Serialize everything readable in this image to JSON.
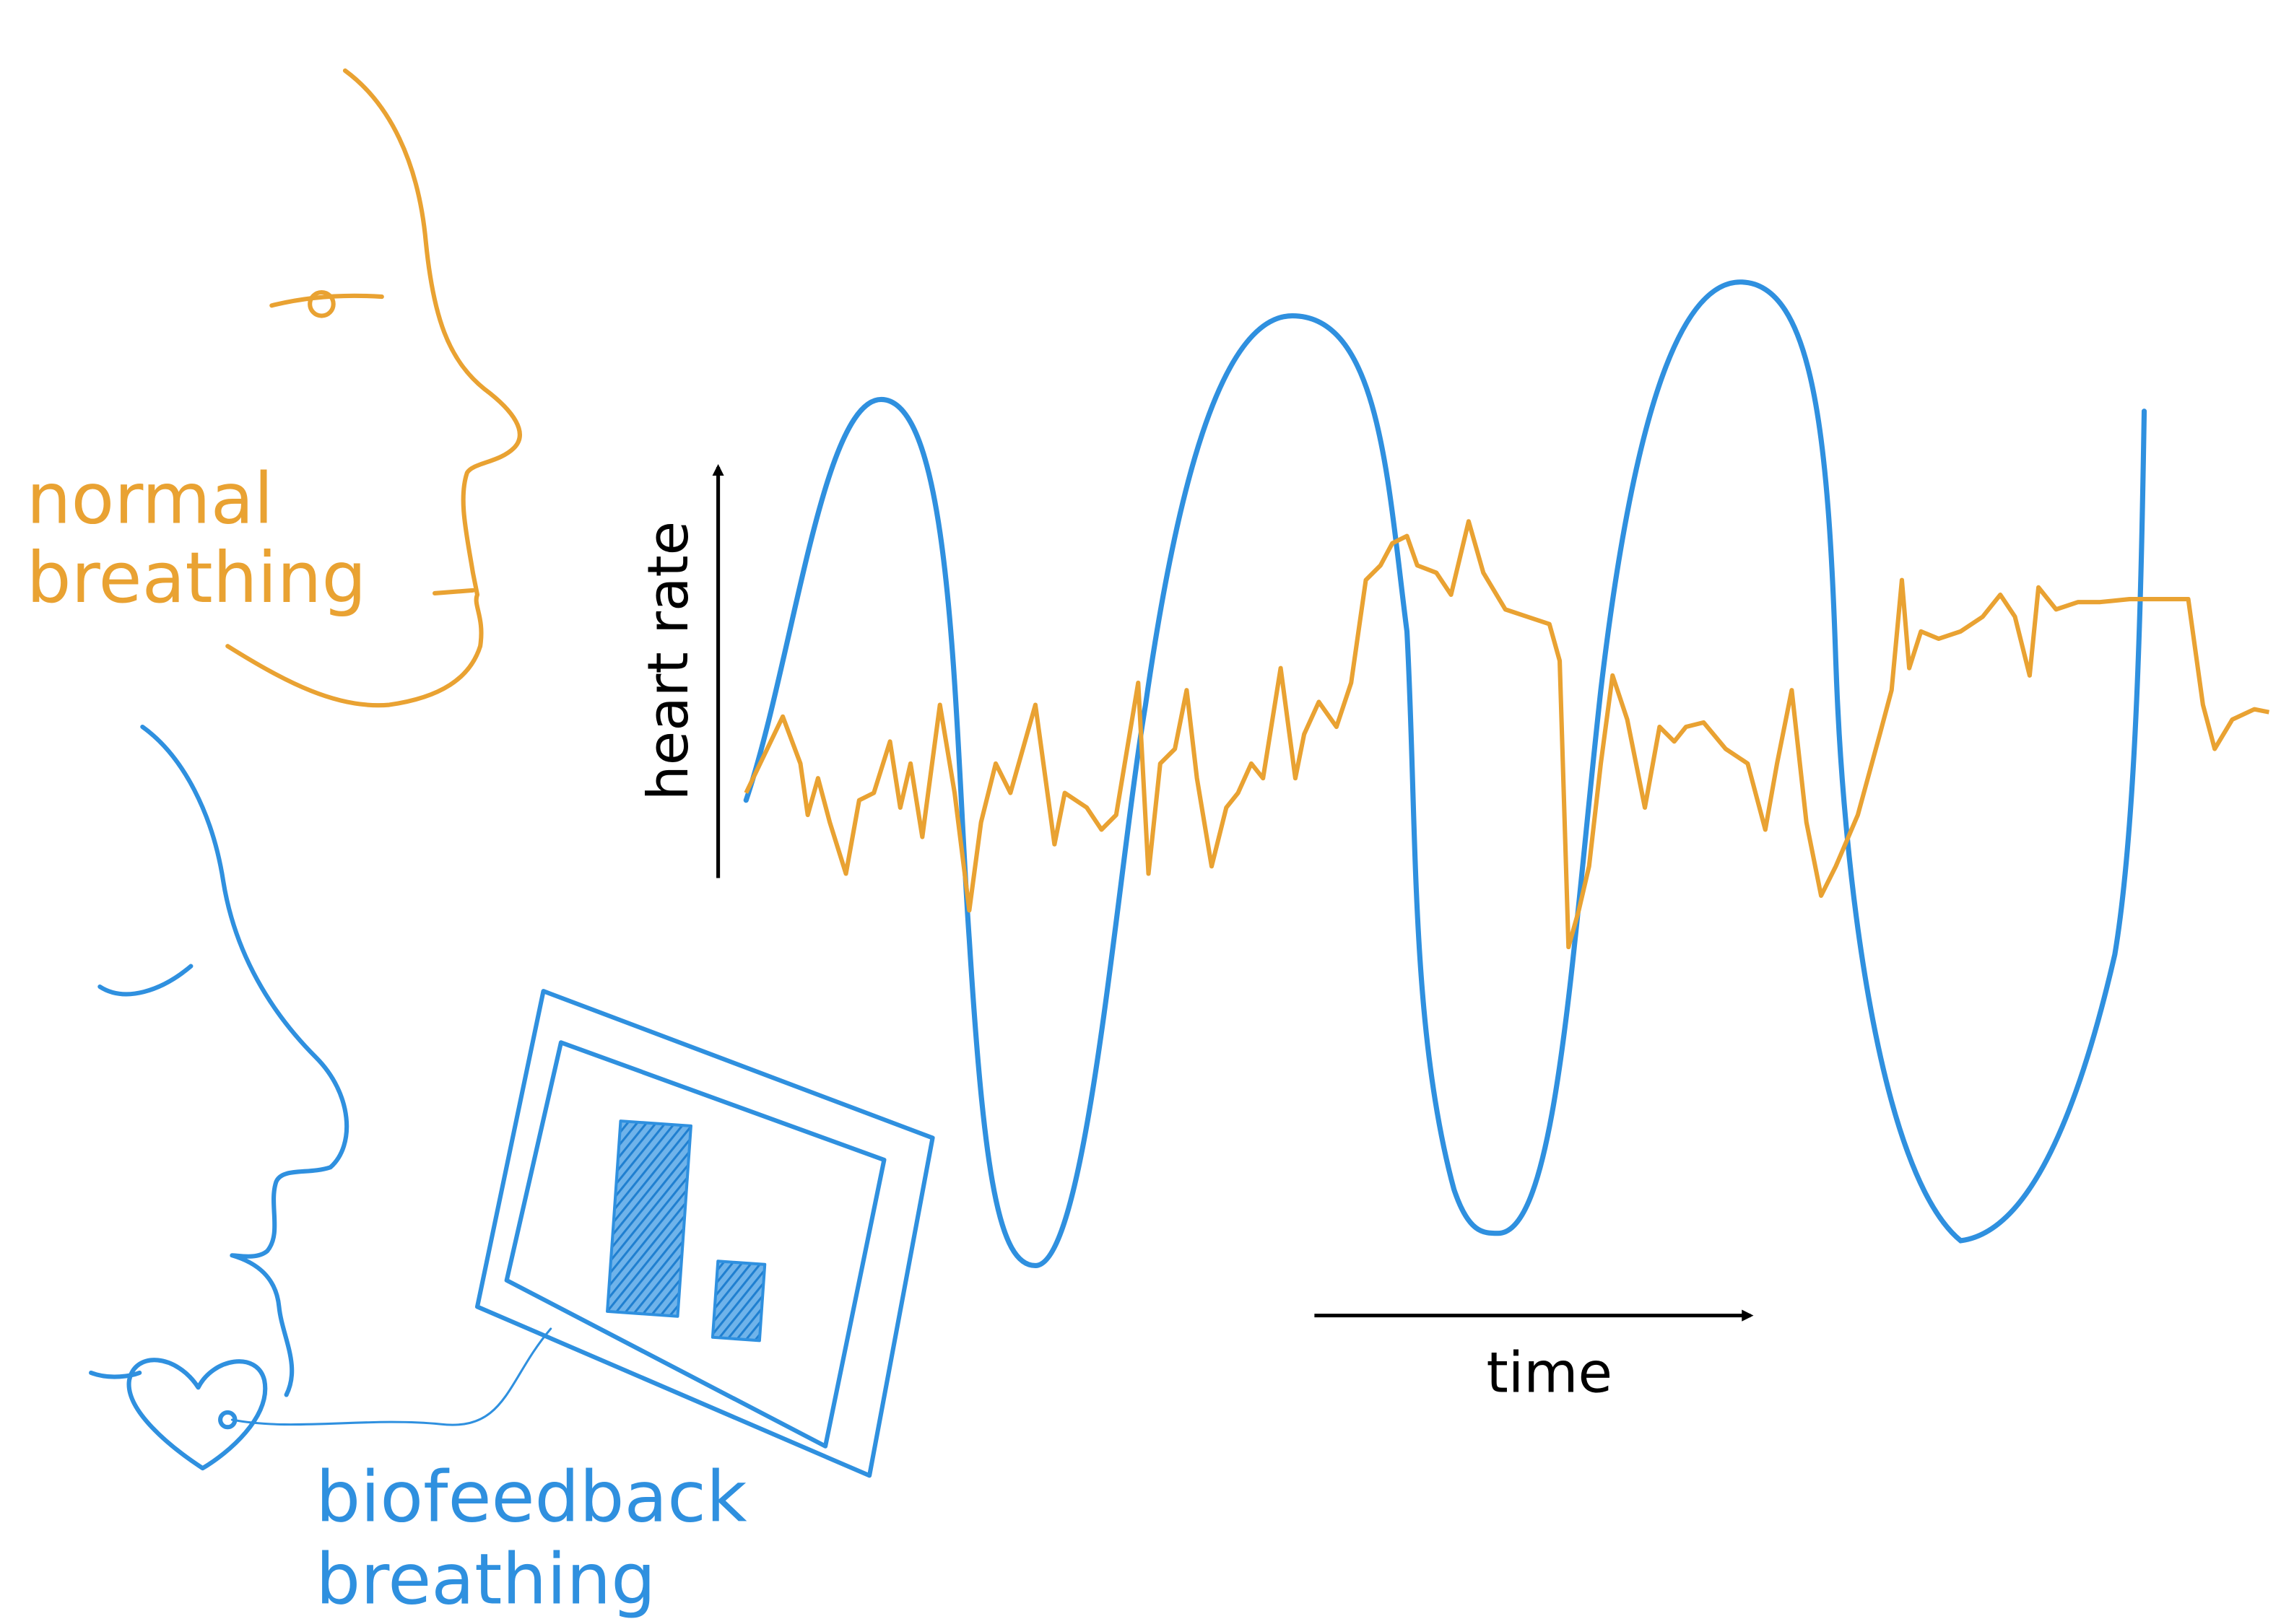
{
  "labels": {
    "normal_line1": "normal",
    "normal_line2": "breathing",
    "biofeedback_line1": "biofeedback",
    "biofeedback_line2": "breathing",
    "y_axis": "heart rate",
    "x_axis": "time"
  },
  "colors": {
    "normal": "#E9A232",
    "biofeedback": "#2F90DF",
    "axis": "#000000"
  },
  "icons": [
    "face-profile-normal",
    "face-profile-biofeedback",
    "heart-sensor-icon",
    "tablet-bar-display-icon"
  ]
}
